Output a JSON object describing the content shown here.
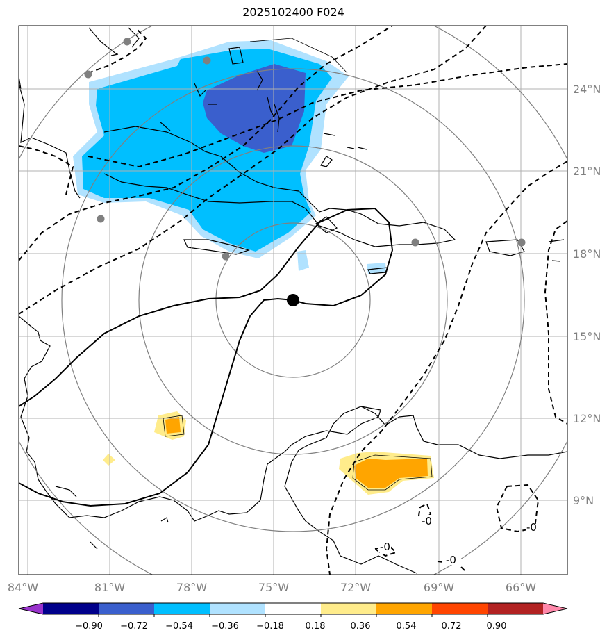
{
  "title": "2025102400 F024",
  "longitude_labels": [
    "84°W",
    "81°W",
    "78°W",
    "75°W",
    "72°W",
    "69°W",
    "66°W"
  ],
  "latitude_labels": [
    "24°N",
    "21°N",
    "18°N",
    "15°N",
    "12°N",
    "9°N"
  ],
  "colorbar": {
    "ticks": [
      "−0.90",
      "−0.72",
      "−0.54",
      "−0.36",
      "−0.18",
      "0.18",
      "0.36",
      "0.54",
      "0.72",
      "0.90"
    ],
    "colors": [
      "#9933cc",
      "#00008b",
      "#3a5fcd",
      "#00bfff",
      "#b0e2ff",
      "#ffffff",
      "#ffec8b",
      "#ffa500",
      "#ff4500",
      "#b22222",
      "#ff88aa"
    ]
  },
  "contour_labels": [
    "-0",
    "-0",
    "-0",
    "-0"
  ],
  "markers": {
    "center": "storm-center-dot",
    "stations": "gray-station-dots"
  },
  "colors": {
    "strong_negative": "#3a5fcd",
    "negative": "#00bfff",
    "weak_negative": "#b0e2ff",
    "weak_positive": "#ffec8b",
    "positive": "#ffa500",
    "grid": "#b0b0b0",
    "range_rings": "#808080"
  }
}
